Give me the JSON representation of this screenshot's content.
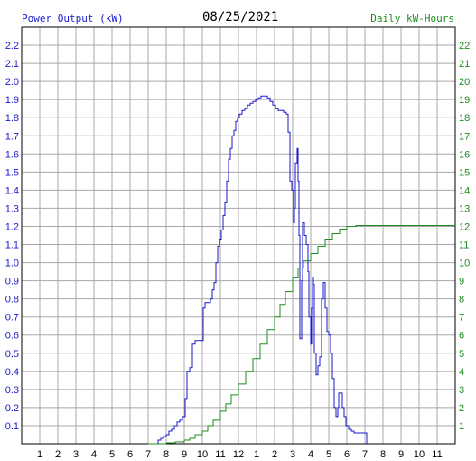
{
  "colors": {
    "power": "#1a1acc",
    "energy": "#1e8a1e",
    "grid": "#a8a8a8",
    "frame": "#000000",
    "text": "#000000"
  },
  "chart_data": {
    "type": "line",
    "title": "08/25/2021",
    "left_axis_title": "Power Output (kW)",
    "right_axis_title": "Daily kW-Hours",
    "grid": true,
    "x_ticks": [
      "1",
      "2",
      "3",
      "4",
      "5",
      "6",
      "7",
      "8",
      "9",
      "10",
      "11",
      "12",
      "1",
      "2",
      "3",
      "4",
      "5",
      "6",
      "7",
      "8",
      "9",
      "10",
      "11"
    ],
    "xlim": [
      0,
      24
    ],
    "y_left_ticks": [
      "0.1",
      "0.2",
      "0.3",
      "0.4",
      "0.5",
      "0.6",
      "0.7",
      "0.8",
      "0.9",
      "1.0",
      "1.1",
      "1.2",
      "1.3",
      "1.4",
      "1.5",
      "1.6",
      "1.7",
      "1.8",
      "1.9",
      "2.0",
      "2.1",
      "2.2"
    ],
    "y_left_lim": [
      0,
      2.3
    ],
    "y_right_ticks": [
      "1",
      "2",
      "3",
      "4",
      "5",
      "6",
      "7",
      "8",
      "9",
      "10",
      "11",
      "12",
      "13",
      "14",
      "15",
      "16",
      "17",
      "18",
      "19",
      "20",
      "21",
      "22"
    ],
    "y_right_lim": [
      0,
      23
    ],
    "series": [
      {
        "name": "Power Output (kW)",
        "axis": "left",
        "step": true,
        "points": [
          [
            7.4,
            0.0
          ],
          [
            7.55,
            0.02
          ],
          [
            7.7,
            0.03
          ],
          [
            7.85,
            0.04
          ],
          [
            8.0,
            0.05
          ],
          [
            8.15,
            0.07
          ],
          [
            8.3,
            0.08
          ],
          [
            8.45,
            0.1
          ],
          [
            8.6,
            0.12
          ],
          [
            8.75,
            0.13
          ],
          [
            8.9,
            0.15
          ],
          [
            9.05,
            0.25
          ],
          [
            9.15,
            0.4
          ],
          [
            9.3,
            0.42
          ],
          [
            9.45,
            0.55
          ],
          [
            9.6,
            0.57
          ],
          [
            9.75,
            0.57
          ],
          [
            9.95,
            0.57
          ],
          [
            10.05,
            0.75
          ],
          [
            10.15,
            0.78
          ],
          [
            10.3,
            0.78
          ],
          [
            10.45,
            0.8
          ],
          [
            10.55,
            0.85
          ],
          [
            10.65,
            0.89
          ],
          [
            10.75,
            1.0
          ],
          [
            10.85,
            1.09
          ],
          [
            10.95,
            1.13
          ],
          [
            11.05,
            1.18
          ],
          [
            11.15,
            1.26
          ],
          [
            11.25,
            1.33
          ],
          [
            11.35,
            1.45
          ],
          [
            11.45,
            1.57
          ],
          [
            11.55,
            1.63
          ],
          [
            11.65,
            1.7
          ],
          [
            11.75,
            1.73
          ],
          [
            11.85,
            1.78
          ],
          [
            11.95,
            1.8
          ],
          [
            12.05,
            1.82
          ],
          [
            12.2,
            1.84
          ],
          [
            12.35,
            1.85
          ],
          [
            12.5,
            1.87
          ],
          [
            12.65,
            1.88
          ],
          [
            12.8,
            1.89
          ],
          [
            12.95,
            1.9
          ],
          [
            13.1,
            1.91
          ],
          [
            13.25,
            1.92
          ],
          [
            13.4,
            1.92
          ],
          [
            13.6,
            1.91
          ],
          [
            13.75,
            1.89
          ],
          [
            13.9,
            1.87
          ],
          [
            14.05,
            1.85
          ],
          [
            14.2,
            1.84
          ],
          [
            14.35,
            1.84
          ],
          [
            14.5,
            1.83
          ],
          [
            14.65,
            1.82
          ],
          [
            14.75,
            1.72
          ],
          [
            14.85,
            1.45
          ],
          [
            14.95,
            1.4
          ],
          [
            15.05,
            1.22
          ],
          [
            15.1,
            1.3
          ],
          [
            15.15,
            1.55
          ],
          [
            15.25,
            1.63
          ],
          [
            15.3,
            1.45
          ],
          [
            15.35,
            1.15
          ],
          [
            15.4,
            0.58
          ],
          [
            15.5,
            0.9
          ],
          [
            15.55,
            1.22
          ],
          [
            15.65,
            1.15
          ],
          [
            15.75,
            1.1
          ],
          [
            15.85,
            0.95
          ],
          [
            15.9,
            0.7
          ],
          [
            16.0,
            0.55
          ],
          [
            16.05,
            0.75
          ],
          [
            16.1,
            0.92
          ],
          [
            16.15,
            0.88
          ],
          [
            16.2,
            0.5
          ],
          [
            16.3,
            0.38
          ],
          [
            16.4,
            0.43
          ],
          [
            16.5,
            0.48
          ],
          [
            16.6,
            0.8
          ],
          [
            16.7,
            0.89
          ],
          [
            16.8,
            0.75
          ],
          [
            16.9,
            0.62
          ],
          [
            17.0,
            0.6
          ],
          [
            17.1,
            0.5
          ],
          [
            17.2,
            0.36
          ],
          [
            17.3,
            0.2
          ],
          [
            17.4,
            0.15
          ],
          [
            17.5,
            0.2
          ],
          [
            17.55,
            0.28
          ],
          [
            17.65,
            0.28
          ],
          [
            17.75,
            0.2
          ],
          [
            17.85,
            0.15
          ],
          [
            17.95,
            0.1
          ],
          [
            18.1,
            0.08
          ],
          [
            18.25,
            0.07
          ],
          [
            18.4,
            0.06
          ],
          [
            18.55,
            0.06
          ],
          [
            18.75,
            0.06
          ],
          [
            18.95,
            0.06
          ],
          [
            19.1,
            0.0
          ]
        ]
      },
      {
        "name": "Daily kW-Hours",
        "axis": "right",
        "step": true,
        "points": [
          [
            7.0,
            0.0
          ],
          [
            8.0,
            0.05
          ],
          [
            8.5,
            0.1
          ],
          [
            9.0,
            0.2
          ],
          [
            9.3,
            0.3
          ],
          [
            9.6,
            0.5
          ],
          [
            10.0,
            0.7
          ],
          [
            10.3,
            1.0
          ],
          [
            10.6,
            1.3
          ],
          [
            11.0,
            1.8
          ],
          [
            11.3,
            2.2
          ],
          [
            11.6,
            2.7
          ],
          [
            12.0,
            3.3
          ],
          [
            12.4,
            4.0
          ],
          [
            12.8,
            4.7
          ],
          [
            13.2,
            5.5
          ],
          [
            13.6,
            6.3
          ],
          [
            14.0,
            7.0
          ],
          [
            14.3,
            7.7
          ],
          [
            14.6,
            8.4
          ],
          [
            15.0,
            9.2
          ],
          [
            15.3,
            9.7
          ],
          [
            15.6,
            10.1
          ],
          [
            16.0,
            10.5
          ],
          [
            16.4,
            10.9
          ],
          [
            16.8,
            11.3
          ],
          [
            17.2,
            11.6
          ],
          [
            17.6,
            11.85
          ],
          [
            18.0,
            12.0
          ],
          [
            18.5,
            12.05
          ],
          [
            24.0,
            12.05
          ]
        ]
      }
    ]
  }
}
